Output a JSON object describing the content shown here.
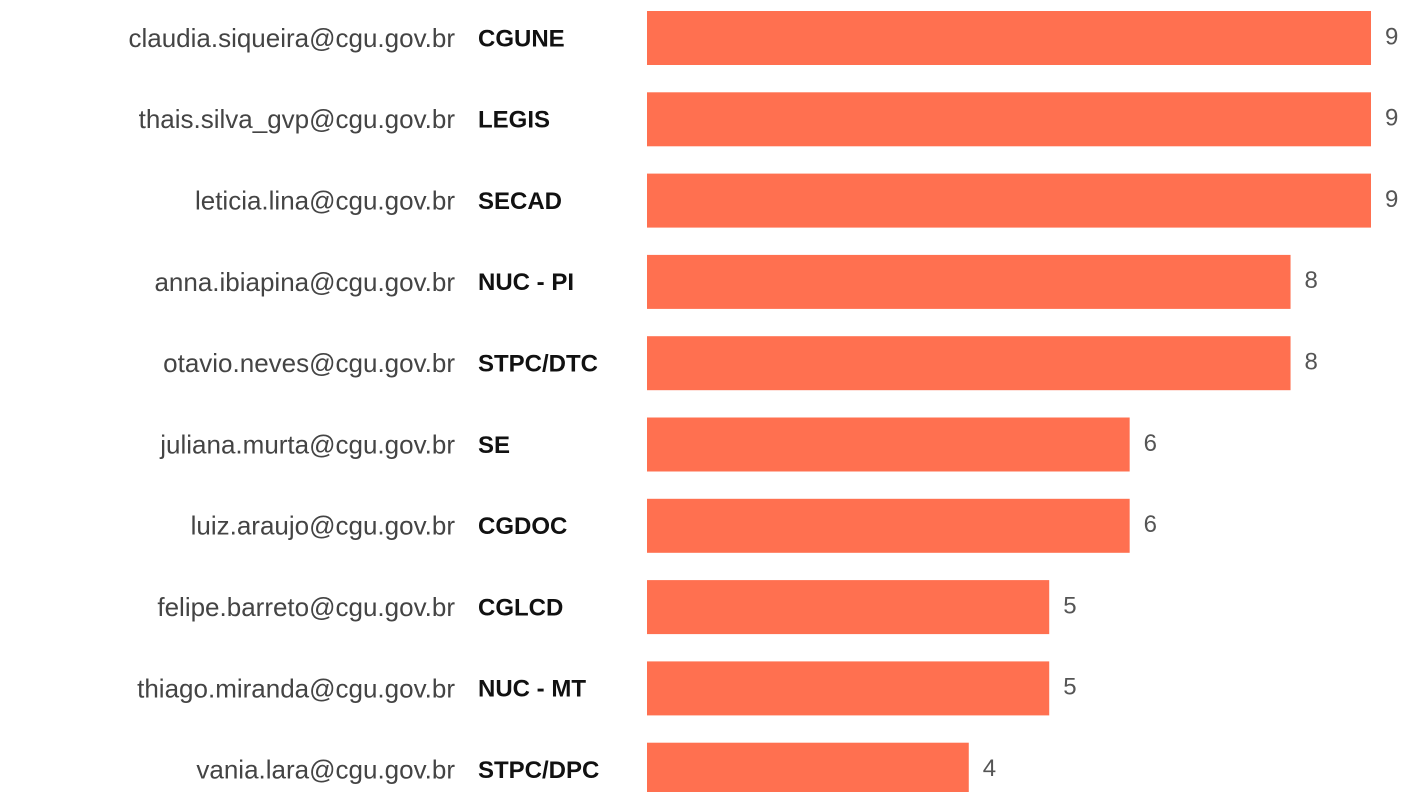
{
  "chart_data": {
    "type": "hbar",
    "categories": [
      "claudia.siqueira@cgu.gov.br",
      "thais.silva_gvp@cgu.gov.br",
      "leticia.lina@cgu.gov.br",
      "anna.ibiapina@cgu.gov.br",
      "otavio.neves@cgu.gov.br",
      "juliana.murta@cgu.gov.br",
      "luiz.araujo@cgu.gov.br",
      "felipe.barreto@cgu.gov.br",
      "thiago.miranda@cgu.gov.br",
      "vania.lara@cgu.gov.br"
    ],
    "groups": [
      "CGUNE",
      "LEGIS",
      "SECAD",
      "NUC - PI",
      "STPC/DTC",
      "SE",
      "CGDOC",
      "CGLCD",
      "NUC - MT",
      "STPC/DPC"
    ],
    "values": [
      9,
      9,
      9,
      8,
      8,
      6,
      6,
      5,
      5,
      4
    ],
    "color": "#ff7050",
    "xlim": [
      0,
      9
    ]
  }
}
